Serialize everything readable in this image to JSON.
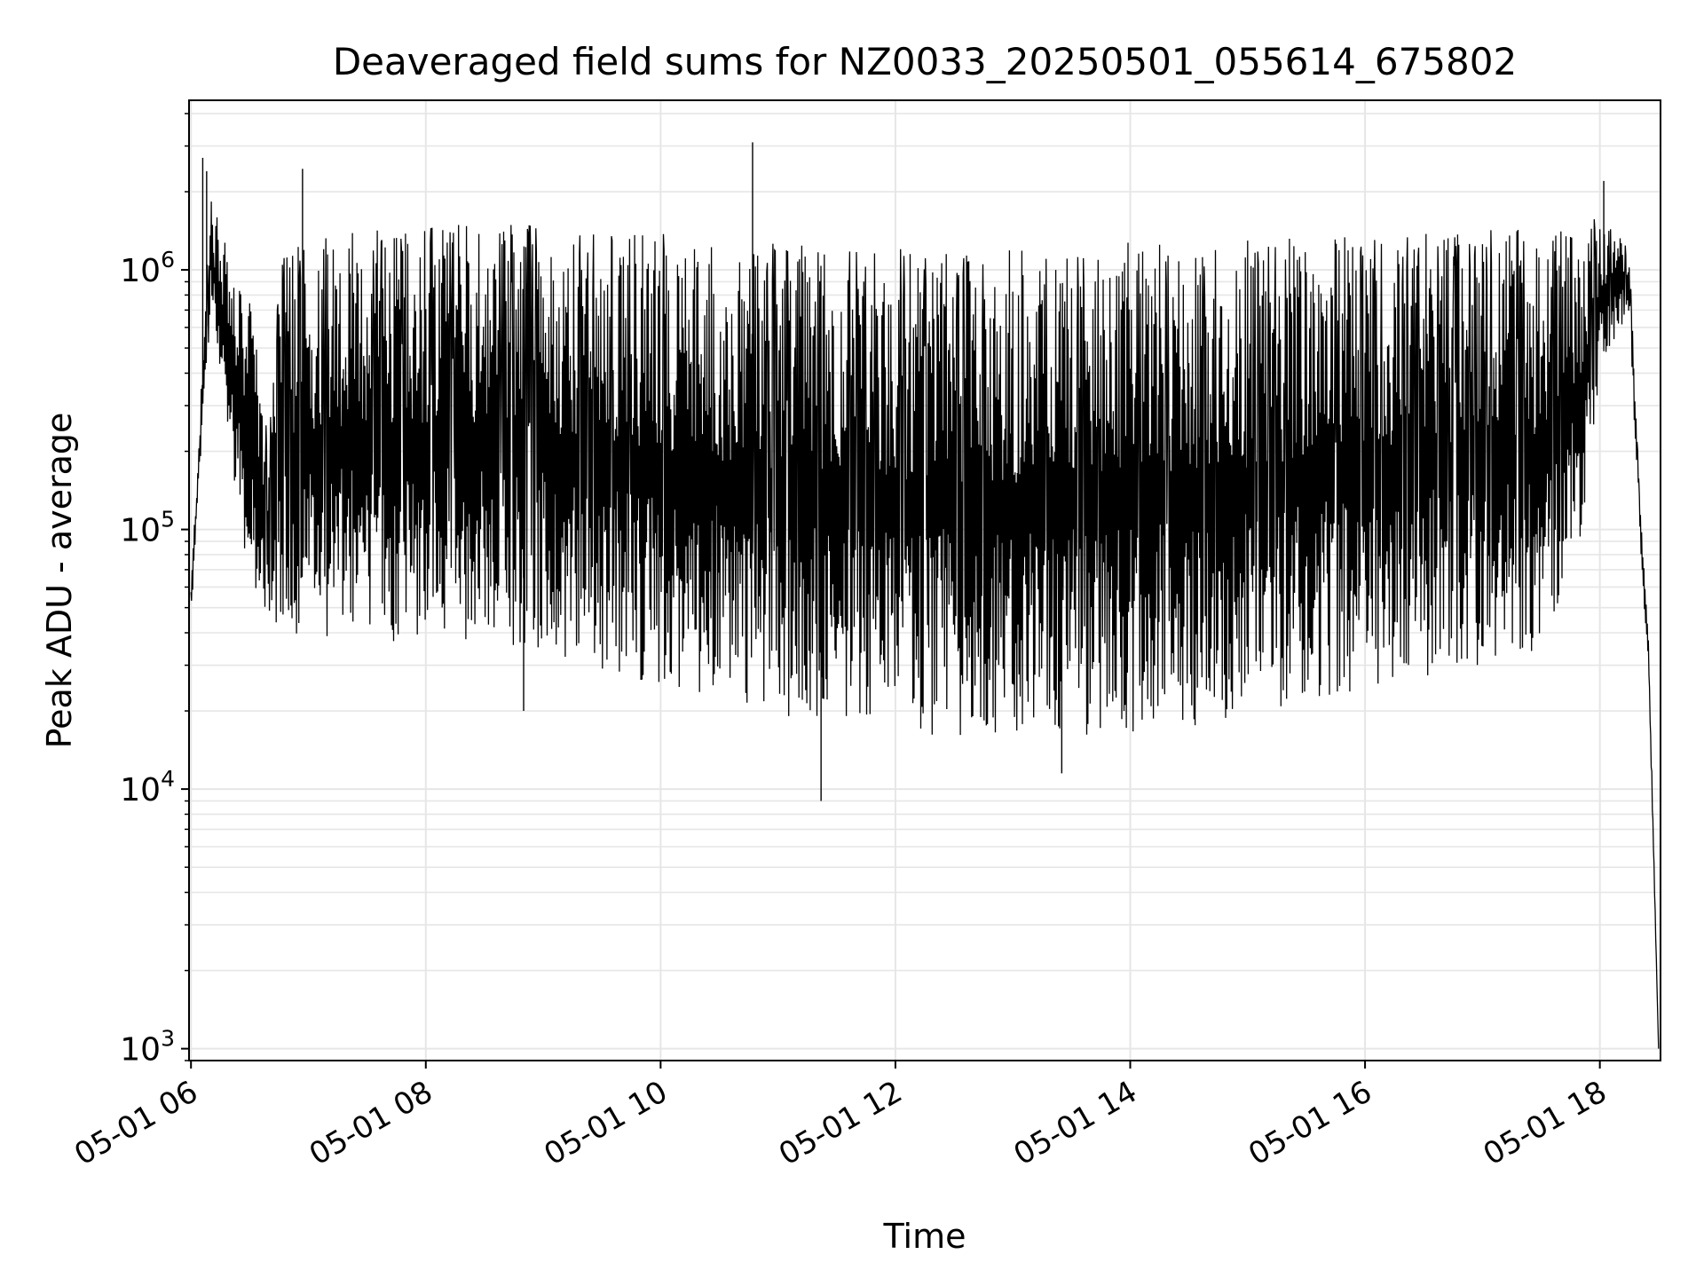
{
  "chart_data": {
    "type": "line",
    "title": "Deaveraged field sums for NZ0033_20250501_055614_675802",
    "xlabel": "Time",
    "ylabel": "Peak ADU - average",
    "yscale": "log",
    "ylim": [
      900,
      4500000
    ],
    "xlim": [
      "05-01 05:59",
      "05-01 18:31"
    ],
    "grid": true,
    "line_color": "#000000",
    "grid_color": "#e6e6e6",
    "x_ticks": [
      {
        "label": "05-01 06",
        "value": "05-01 06:00"
      },
      {
        "label": "05-01 08",
        "value": "05-01 08:00"
      },
      {
        "label": "05-01 10",
        "value": "05-01 10:00"
      },
      {
        "label": "05-01 12",
        "value": "05-01 12:00"
      },
      {
        "label": "05-01 14",
        "value": "05-01 14:00"
      },
      {
        "label": "05-01 16",
        "value": "05-01 16:00"
      },
      {
        "label": "05-01 18",
        "value": "05-01 18:00"
      }
    ],
    "y_ticks": [
      {
        "base": "10",
        "exp": "3",
        "value": 1000
      },
      {
        "base": "10",
        "exp": "4",
        "value": 10000
      },
      {
        "base": "10",
        "exp": "5",
        "value": 100000
      },
      {
        "base": "10",
        "exp": "6",
        "value": 1000000
      }
    ],
    "series": [
      {
        "x": [
          "05-01 06:00",
          "05-01 06:10",
          "05-01 06:15",
          "05-01 06:20",
          "05-01 06:30",
          "05-01 06:40",
          "05-01 06:45",
          "05-01 07:00",
          "05-01 07:30",
          "05-01 08:00",
          "05-01 08:30",
          "05-01 09:00",
          "05-01 09:30",
          "05-01 10:00",
          "05-01 10:30",
          "05-01 11:00",
          "05-01 11:30",
          "05-01 12:00",
          "05-01 12:30",
          "05-01 13:00",
          "05-01 13:30",
          "05-01 14:00",
          "05-01 14:30",
          "05-01 15:00",
          "05-01 15:30",
          "05-01 16:00",
          "05-01 16:30",
          "05-01 17:00",
          "05-01 17:30",
          "05-01 17:50",
          "05-01 18:00",
          "05-01 18:15",
          "05-01 18:20",
          "05-01 18:25",
          "05-01 18:30"
        ],
        "upper": [
          60000,
          1800000,
          1500000,
          1000000,
          700000,
          200000,
          900000,
          1100000,
          1150000,
          1200000,
          1250000,
          1200000,
          1150000,
          1100000,
          1050000,
          1000000,
          950000,
          950000,
          950000,
          950000,
          950000,
          1000000,
          1000000,
          1050000,
          1050000,
          1100000,
          1100000,
          1150000,
          1150000,
          1250000,
          1500000,
          1200000,
          150000,
          35000,
          1000
        ],
        "lower": [
          45000,
          700000,
          400000,
          200000,
          60000,
          45000,
          40000,
          38000,
          36000,
          37000,
          38000,
          33000,
          29000,
          25000,
          22000,
          19000,
          17000,
          16000,
          16000,
          16000,
          16000,
          16500,
          17000,
          19000,
          22000,
          24000,
          27000,
          30000,
          33000,
          90000,
          400000,
          700000,
          100000,
          27000,
          1000
        ]
      }
    ],
    "spikes": [
      {
        "x": "05-01 06:06",
        "y": 2700000
      },
      {
        "x": "05-01 06:08",
        "y": 2400000
      },
      {
        "x": "05-01 06:57",
        "y": 2450000
      },
      {
        "x": "05-01 10:47",
        "y": 3100000
      },
      {
        "x": "05-01 18:02",
        "y": 2200000
      },
      {
        "x": "05-01 11:22",
        "y": 9000
      },
      {
        "x": "05-01 08:50",
        "y": 20000
      },
      {
        "x": "05-01 13:25",
        "y": 11500
      }
    ]
  }
}
